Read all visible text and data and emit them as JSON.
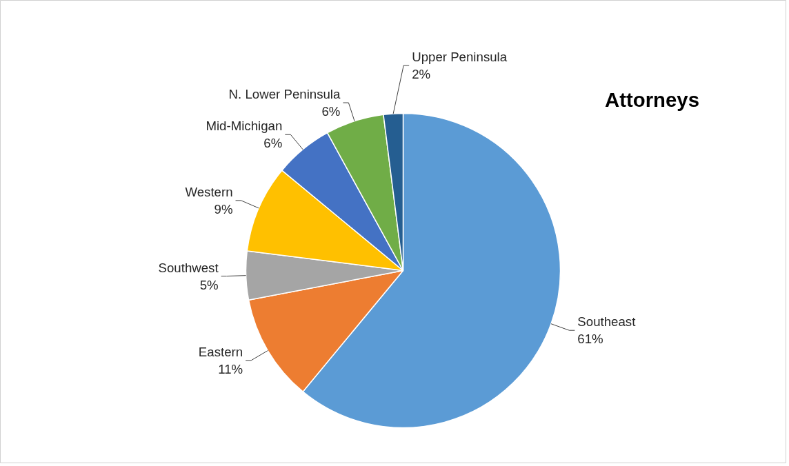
{
  "chart_data": {
    "type": "pie",
    "title": "Attorneys",
    "categories": [
      "Southeast",
      "Eastern",
      "Southwest",
      "Western",
      "Mid-Michigan",
      "N. Lower Peninsula",
      "Upper Peninsula"
    ],
    "values": [
      61,
      11,
      5,
      9,
      6,
      6,
      2
    ],
    "value_labels": [
      "61%",
      "11%",
      "5%",
      "9%",
      "6%",
      "6%",
      "2%"
    ],
    "colors": [
      "#5b9bd5",
      "#ed7d31",
      "#a5a5a5",
      "#ffc000",
      "#4472c4",
      "#70ad47",
      "#255e91"
    ]
  }
}
